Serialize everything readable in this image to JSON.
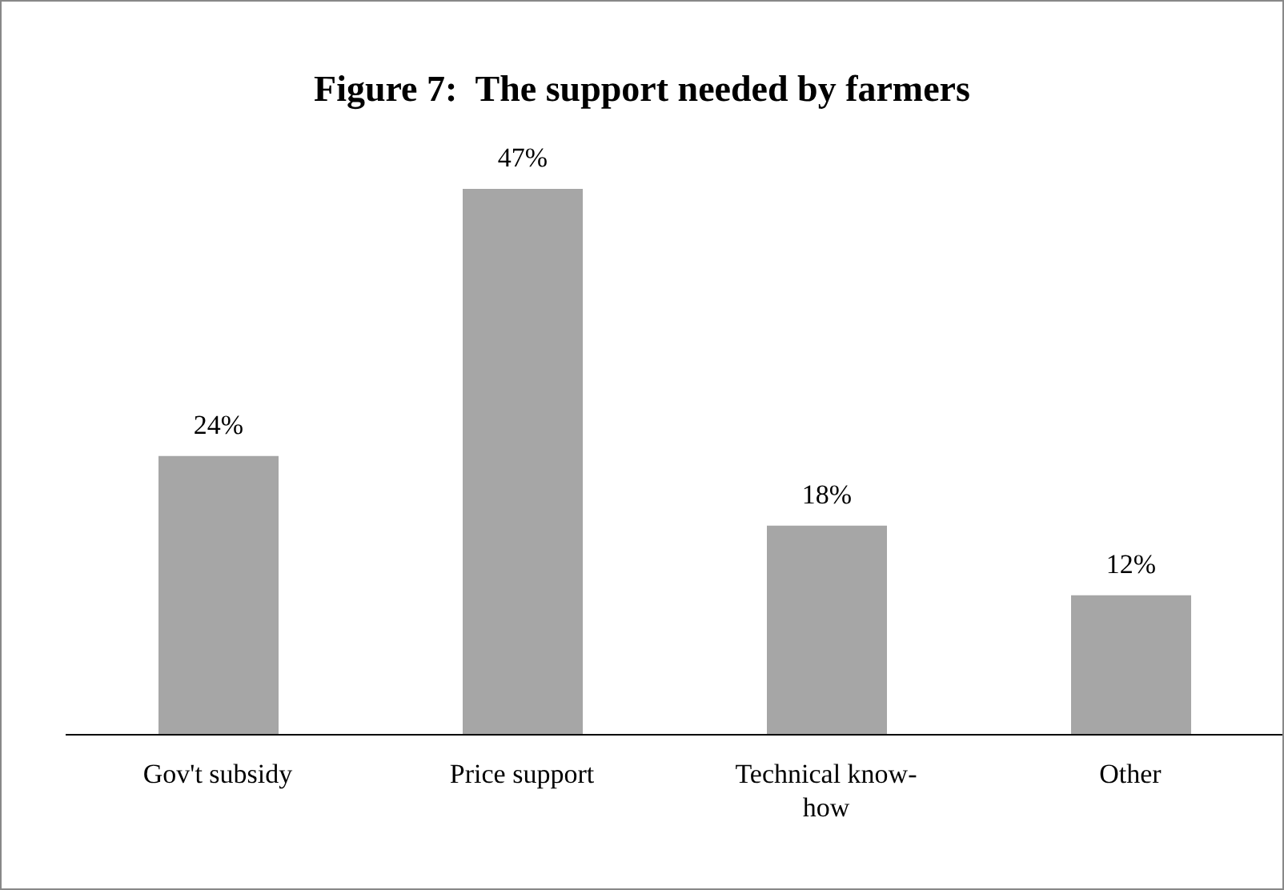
{
  "chart_data": {
    "type": "bar",
    "title": "Figure 7:  The support needed by farmers",
    "categories": [
      "Gov't subsidy",
      "Price support",
      "Technical know-how",
      "Other"
    ],
    "values": [
      24,
      47,
      18,
      12
    ],
    "value_labels": [
      "24%",
      "47%",
      "18%",
      "12%"
    ],
    "color": "#a6a6a6",
    "legend": false,
    "grid": false
  }
}
